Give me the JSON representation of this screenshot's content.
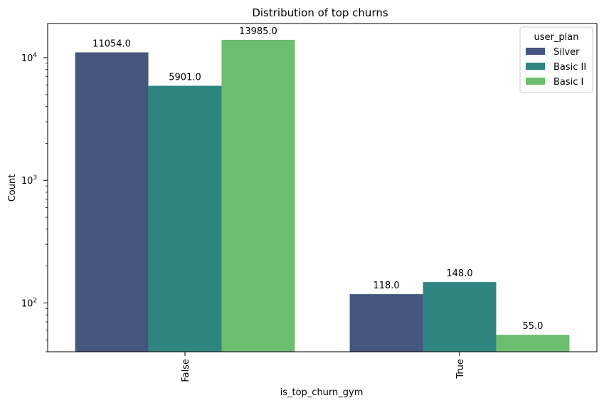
{
  "chart_data": {
    "type": "bar",
    "title": "Distribution of top churns",
    "xlabel": "is_top_churn_gym",
    "ylabel": "Count",
    "yscale": "log",
    "ylim": [
      40,
      19000
    ],
    "y_ticks": [
      {
        "value": 100,
        "base": "10",
        "exp": "2"
      },
      {
        "value": 1000,
        "base": "10",
        "exp": "3"
      },
      {
        "value": 10000,
        "base": "10",
        "exp": "4"
      }
    ],
    "categories": [
      "False",
      "True"
    ],
    "series": [
      {
        "name": "Silver",
        "color": "#45567f",
        "values": [
          11054.0,
          118.0
        ],
        "labels": [
          "11054.0",
          "118.0"
        ]
      },
      {
        "name": "Basic II",
        "color": "#2e8580",
        "values": [
          5901.0,
          148.0
        ],
        "labels": [
          "5901.0",
          "148.0"
        ]
      },
      {
        "name": "Basic I",
        "color": "#6cbd6e",
        "values": [
          13985.0,
          55.0
        ],
        "labels": [
          "13985.0",
          "55.0"
        ]
      }
    ],
    "legend": {
      "title": "user_plan",
      "position": "top-right"
    },
    "grid": false
  }
}
